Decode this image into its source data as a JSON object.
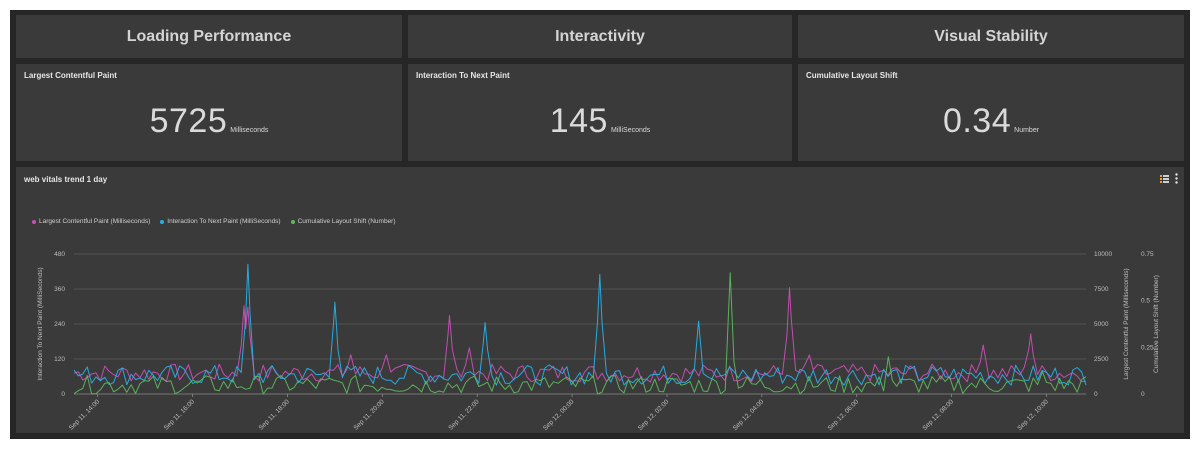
{
  "sections": {
    "loading": "Loading Performance",
    "interactivity": "Interactivity",
    "visual": "Visual Stability"
  },
  "kpis": {
    "lcp": {
      "title": "Largest Contentful Paint",
      "value": "5725",
      "unit": "Milliseconds"
    },
    "inp": {
      "title": "Interaction To Next Paint",
      "value": "145",
      "unit": "MilliSeconds"
    },
    "cls": {
      "title": "Cumulative Layout Shift",
      "value": "0.34",
      "unit": "Number"
    }
  },
  "colors": {
    "lcp": "#c94fb5",
    "inp": "#27b0e6",
    "cls": "#5cb85c"
  },
  "chart_data": {
    "type": "line",
    "title": "web vitals trend 1 day",
    "legend_position": "top-left",
    "grid": true,
    "x_ticks": [
      "Sep 11, 14:00",
      "Sep 11, 16:00",
      "Sep 11, 18:00",
      "Sep 11, 20:00",
      "Sep 11, 22:00",
      "Sep 12, 00:00",
      "Sep 12, 02:00",
      "Sep 12, 04:00",
      "Sep 12, 06:00",
      "Sep 12, 08:00",
      "Sep 12, 10:00"
    ],
    "x_range": [
      "Sep 11, 13:30",
      "Sep 12, 10:50"
    ],
    "axes": {
      "left": {
        "label": "Interaction To Next Paint (MilliSeconds)",
        "range": [
          0,
          480
        ],
        "ticks": [
          "0",
          "120",
          "240",
          "360",
          "480"
        ]
      },
      "right1": {
        "label": "Largest Contentful Paint (Milliseconds)",
        "range": [
          0,
          10000
        ],
        "ticks": [
          "0",
          "2500",
          "5000",
          "7500",
          "10000"
        ]
      },
      "right2": {
        "label": "Cumulative Layout Shift (Number)",
        "range": [
          0,
          0.75
        ],
        "ticks": [
          "0",
          "0.25",
          "0.5",
          "0.75"
        ]
      }
    },
    "series": [
      {
        "name": "Largest Contentful Paint (Milliseconds)",
        "axis": "right1",
        "color_key": "lcp",
        "baseline": 1500,
        "noise": 650,
        "spikes": [
          {
            "x": "Sep 11, 17:05",
            "y": 6300
          },
          {
            "x": "Sep 11, 17:10",
            "y": 6200
          },
          {
            "x": "Sep 11, 19:20",
            "y": 2800
          },
          {
            "x": "Sep 11, 20:05",
            "y": 2800
          },
          {
            "x": "Sep 11, 21:25",
            "y": 5600
          },
          {
            "x": "Sep 11, 21:50",
            "y": 3300
          },
          {
            "x": "Sep 12, 04:35",
            "y": 7600
          },
          {
            "x": "Sep 12, 05:00",
            "y": 2800
          },
          {
            "x": "Sep 12, 08:40",
            "y": 3500
          },
          {
            "x": "Sep 12, 09:40",
            "y": 4300
          }
        ]
      },
      {
        "name": "Interaction To Next Paint (MilliSeconds)",
        "axis": "left",
        "color_key": "inp",
        "baseline": 65,
        "noise": 35,
        "spikes": [
          {
            "x": "Sep 11, 17:10",
            "y": 445
          },
          {
            "x": "Sep 11, 19:00",
            "y": 315
          },
          {
            "x": "Sep 11, 22:10",
            "y": 245
          },
          {
            "x": "Sep 12, 00:35",
            "y": 410
          },
          {
            "x": "Sep 12, 02:40",
            "y": 250
          }
        ]
      },
      {
        "name": "Cumulative Layout Shift (Number)",
        "axis": "right2",
        "color_key": "cls",
        "baseline": 0.05,
        "noise": 0.05,
        "spikes": [
          {
            "x": "Sep 12, 03:20",
            "y": 0.65
          },
          {
            "x": "Sep 12, 06:40",
            "y": 0.2
          },
          {
            "x": "Sep 12, 09:55",
            "y": 0.12
          }
        ]
      }
    ]
  }
}
